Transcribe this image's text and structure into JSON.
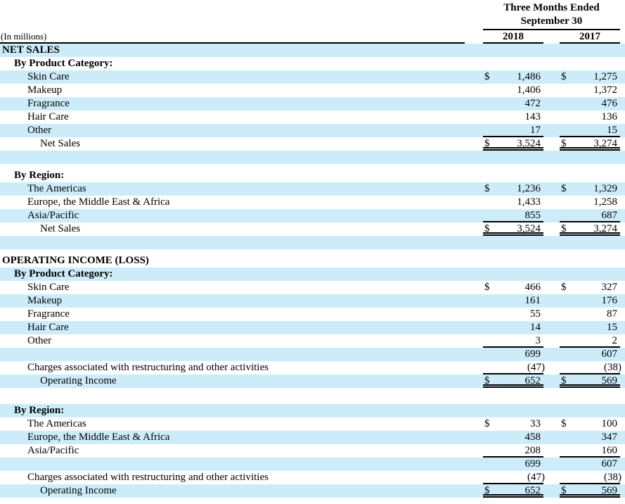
{
  "meta": {
    "shade_color": "#cdecfa",
    "text_color": "#000000",
    "rule_color": "#000000"
  },
  "header": {
    "period_line1": "Three Months Ended",
    "period_line2": "September 30",
    "unit_note": "(In millions)",
    "year_col_1": "2018",
    "year_col_2": "2017"
  },
  "rows": [
    {
      "name": "net-sales-section",
      "label": "NET SALES",
      "indent": 0,
      "bold": true,
      "shade": true
    },
    {
      "name": "by-product-category-subhead",
      "label": "By Product Category:",
      "indent": 1,
      "bold": true,
      "shade": false
    },
    {
      "name": "skin-care",
      "label": "Skin Care",
      "indent": 2,
      "shade": true,
      "d1": "$",
      "v1": "1,486",
      "d2": "$",
      "v2": "1,275"
    },
    {
      "name": "makeup",
      "label": "Makeup",
      "indent": 2,
      "shade": false,
      "v1": "1,406",
      "v2": "1,372"
    },
    {
      "name": "fragrance",
      "label": "Fragrance",
      "indent": 2,
      "shade": true,
      "v1": "472",
      "v2": "476"
    },
    {
      "name": "hair-care",
      "label": "Hair Care",
      "indent": 2,
      "shade": false,
      "v1": "143",
      "v2": "136"
    },
    {
      "name": "other",
      "label": "Other",
      "indent": 2,
      "shade": true,
      "v1": "17",
      "v2": "15",
      "rule": "single"
    },
    {
      "name": "net-sales-total",
      "label": "Net Sales",
      "indent": 3,
      "shade": false,
      "d1": "$",
      "v1": "3,524",
      "d2": "$",
      "v2": "3,274",
      "rule": "double"
    },
    {
      "name": "spacer",
      "shade": true
    },
    {
      "name": "spacer",
      "shade": false,
      "height": 7
    },
    {
      "name": "by-region-subhead",
      "label": "By Region:",
      "indent": 1,
      "bold": true,
      "shade": false
    },
    {
      "name": "the-americas",
      "label": "The Americas",
      "indent": 2,
      "shade": true,
      "d1": "$",
      "v1": "1,236",
      "d2": "$",
      "v2": "1,329"
    },
    {
      "name": "europe-middle-east-africa",
      "label": "Europe, the Middle East & Africa",
      "indent": 2,
      "shade": false,
      "v1": "1,433",
      "v2": "1,258"
    },
    {
      "name": "asia-pacific",
      "label": "Asia/Pacific",
      "indent": 2,
      "shade": true,
      "v1": "855",
      "v2": "687",
      "rule": "single"
    },
    {
      "name": "net-sales-total",
      "label": "Net Sales",
      "indent": 3,
      "shade": false,
      "d1": "$",
      "v1": "3,524",
      "d2": "$",
      "v2": "3,274",
      "rule": "double"
    },
    {
      "name": "spacer",
      "shade": true
    },
    {
      "name": "spacer",
      "shade": false,
      "height": 7
    },
    {
      "name": "operating-income-section",
      "label": "OPERATING INCOME (LOSS)",
      "indent": 0,
      "bold": true,
      "shade": false
    },
    {
      "name": "by-product-category-subhead",
      "label": "By Product Category:",
      "indent": 1,
      "bold": true,
      "shade": true
    },
    {
      "name": "skin-care",
      "label": "Skin Care",
      "indent": 2,
      "shade": false,
      "d1": "$",
      "v1": "466",
      "d2": "$",
      "v2": "327"
    },
    {
      "name": "makeup",
      "label": "Makeup",
      "indent": 2,
      "shade": true,
      "v1": "161",
      "v2": "176"
    },
    {
      "name": "fragrance",
      "label": "Fragrance",
      "indent": 2,
      "shade": false,
      "v1": "55",
      "v2": "87"
    },
    {
      "name": "hair-care",
      "label": "Hair Care",
      "indent": 2,
      "shade": true,
      "v1": "14",
      "v2": "15"
    },
    {
      "name": "other",
      "label": "Other",
      "indent": 2,
      "shade": false,
      "v1": "3",
      "v2": "2",
      "rule": "single"
    },
    {
      "name": "subtotal",
      "shade": true,
      "v1": "699",
      "v2": "607"
    },
    {
      "name": "restructuring-charges",
      "label": "Charges associated with restructuring and other activities",
      "indent": 2,
      "shade": false,
      "v1": "(47)",
      "v2": "(38)",
      "neg": true,
      "rule": "single"
    },
    {
      "name": "operating-income-total",
      "label": "Operating Income",
      "indent": 3,
      "shade": true,
      "d1": "$",
      "v1": "652",
      "d2": "$",
      "v2": "569",
      "rule": "double"
    },
    {
      "name": "spacer",
      "shade": false,
      "height": 23
    },
    {
      "name": "by-region-subhead",
      "label": "By Region:",
      "indent": 1,
      "bold": true,
      "shade": true
    },
    {
      "name": "the-americas",
      "label": "The Americas",
      "indent": 2,
      "shade": false,
      "d1": "$",
      "v1": "33",
      "d2": "$",
      "v2": "100"
    },
    {
      "name": "europe-middle-east-africa",
      "label": "Europe, the Middle East & Africa",
      "indent": 2,
      "shade": true,
      "v1": "458",
      "v2": "347"
    },
    {
      "name": "asia-pacific",
      "label": "Asia/Pacific",
      "indent": 2,
      "shade": false,
      "v1": "208",
      "v2": "160",
      "rule": "single"
    },
    {
      "name": "subtotal",
      "shade": true,
      "v1": "699",
      "v2": "607"
    },
    {
      "name": "restructuring-charges",
      "label": "Charges associated with restructuring and other activities",
      "indent": 2,
      "shade": false,
      "v1": "(47)",
      "v2": "(38)",
      "neg": true,
      "rule": "single"
    },
    {
      "name": "operating-income-total",
      "label": "Operating Income",
      "indent": 3,
      "shade": true,
      "d1": "$",
      "v1": "652",
      "d2": "$",
      "v2": "569",
      "rule": "double"
    }
  ]
}
